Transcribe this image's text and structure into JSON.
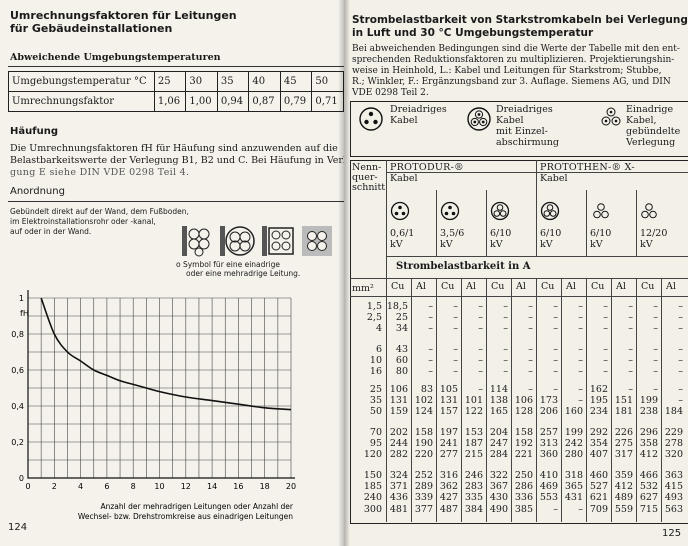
{
  "left": {
    "title_line1": "Umrechnungsfaktoren für Leitungen",
    "title_line2": "für Gebäudeinstallationen",
    "temp_section": "Abweichende Umgebungstemperaturen",
    "temp_table": {
      "row1_label": "Umgebungstemperatur °C",
      "row1_values": [
        "25",
        "30",
        "35",
        "40",
        "45",
        "50"
      ],
      "row2_label": "Umrechnungsfaktor",
      "row2_values": [
        "1,06",
        "1,00",
        "0,94",
        "0,87",
        "0,79",
        "0,71"
      ]
    },
    "haeufung_heading": "Häufung",
    "haeufung_line1": "Die Umrechnungsfaktoren fH für Häufung sind anzuwenden auf die",
    "haeufung_line2": "Belastbarkeitswerte der Verlegung B1, B2 und C. Bei Häufung in Verle-",
    "haeufung_line3": "gung E siehe DIN VDE 0298 Teil 4.",
    "anordnung_heading": "Anordnung",
    "anordnung_text1": "Gebündelt direkt auf der Wand, dem Fußboden,",
    "anordnung_text2": "im Elektroinstallationsrohr oder -kanal,",
    "anordnung_text3": "auf oder in der Wand.",
    "symbol_line1": "o  Symbol für eine einadrige",
    "symbol_line2": "oder eine mehradrige Leitung.",
    "page_number": "124"
  },
  "chart_data": {
    "type": "line",
    "title": "",
    "ylabel": "fH",
    "xlabel": "Anzahl der mehradrigen Leitungen oder Anzahl der Wechsel- bzw. Drehstromkreise aus einadrigen Leitungen",
    "xlabel_line1": "Anzahl der mehradrigen Leitungen oder Anzahl der",
    "xlabel_line2": "Wechsel- bzw. Drehstromkreise aus einadrigen Leitungen",
    "xlim": [
      0,
      20
    ],
    "ylim": [
      0,
      1
    ],
    "x_ticks": [
      "0",
      "2",
      "4",
      "6",
      "8",
      "10",
      "12",
      "14",
      "16",
      "18",
      "20"
    ],
    "y_ticks": [
      "0",
      "0,2",
      "0,4",
      "0,6",
      "0,8",
      "1"
    ],
    "grid": true,
    "series": [
      {
        "x": [
          1,
          2,
          3,
          4,
          5,
          6,
          7,
          8,
          9,
          10,
          12,
          14,
          16,
          18,
          20
        ],
        "y": [
          1.0,
          0.8,
          0.7,
          0.65,
          0.6,
          0.57,
          0.54,
          0.52,
          0.5,
          0.48,
          0.45,
          0.43,
          0.41,
          0.39,
          0.38
        ]
      }
    ]
  },
  "right": {
    "title_line1": "Strombelastbarkeit von Starkstromkabeln bei Verlegung frei",
    "title_line2": "in Luft und 30 °C Umgebungstemperatur",
    "intro_line1": "Bei abweichenden Bedingungen sind die Werte der Tabelle mit den ent-",
    "intro_line2": "sprechenden Reduktionsfaktoren zu multiplizieren. Projektierungshin-",
    "intro_line3": "weise in Heinhold, L.: Kabel und Leitungen für Starkstrom; Stubbe,",
    "intro_line4": "R.; Winkler, F.: Ergänzungsband zur 3. Auflage. Siemens AG, und DIN",
    "intro_line5": "VDE 0298 Teil 2.",
    "legend": [
      {
        "line1": "Dreiadriges",
        "line2": "Kabel",
        "line3": "",
        "line4": ""
      },
      {
        "line1": "Dreiadriges",
        "line2": "Kabel",
        "line3": "mit Einzel-",
        "line4": "abschirmung"
      },
      {
        "line1": "Einadrige",
        "line2": "Kabel,",
        "line3": "gebündelte",
        "line4": "Verlegung"
      }
    ],
    "nenn_line1": "Nenn-",
    "nenn_line2": "quer-",
    "nenn_line3": "schnitt",
    "group1": "PROTODUR-®",
    "group1_sub": "Kabel",
    "group2": "PROTOTHEN-® X-",
    "group2_sub": "Kabel",
    "voltages": [
      {
        "v": "0,6/1",
        "u": "kV"
      },
      {
        "v": "3,5/6",
        "u": "kV"
      },
      {
        "v": "6/10",
        "u": "kV"
      },
      {
        "v": "6/10",
        "u": "kV"
      },
      {
        "v": "6/10",
        "u": "kV"
      },
      {
        "v": "12/20",
        "u": "kV"
      }
    ],
    "strombelastbarkeit": "Strombelastbarkeit in A",
    "unit": "mm²",
    "material_headers": [
      "Cu",
      "Al",
      "Cu",
      "Al",
      "Cu",
      "Al",
      "Cu",
      "Al",
      "Cu",
      "Al",
      "Cu",
      "Al"
    ],
    "sections": [
      "1,5\n2,5\n4",
      "6\n10\n16",
      "25\n35\n50",
      "70\n95\n120",
      "150\n185\n240\n300"
    ],
    "columns": [
      [
        "18,5\n25\n34",
        "43\n60\n80",
        "106\n131\n159",
        "202\n244\n282",
        "324\n371\n436\n481"
      ],
      [
        "–\n–\n–",
        "–\n–\n–",
        "83\n102\n124",
        "158\n190\n220",
        "252\n289\n339\n377"
      ],
      [
        "–\n–\n–",
        "–\n–\n–",
        "105\n131\n157",
        "197\n241\n277",
        "316\n362\n427\n487"
      ],
      [
        "–\n–\n–",
        "–\n–\n–",
        "–\n101\n122",
        "153\n187\n215",
        "246\n283\n335\n384"
      ],
      [
        "–\n–\n–",
        "–\n–\n–",
        "114\n138\n165",
        "204\n247\n284",
        "322\n367\n430\n490"
      ],
      [
        "–\n–\n–",
        "–\n–\n–",
        "–\n106\n128",
        "158\n192\n221",
        "250\n286\n336\n385"
      ],
      [
        "–\n–\n–",
        "–\n–\n–",
        "–\n173\n206",
        "257\n313\n360",
        "410\n469\n553\n–"
      ],
      [
        "–\n–\n–",
        "–\n–\n–",
        "–\n–\n160",
        "199\n242\n280",
        "318\n365\n431\n–"
      ],
      [
        "–\n–\n–",
        "–\n–\n–",
        "162\n195\n234",
        "292\n354\n407",
        "460\n527\n621\n709"
      ],
      [
        "–\n–\n–",
        "–\n–\n–",
        "–\n151\n181",
        "226\n275\n317",
        "359\n412\n489\n559"
      ],
      [
        "–\n–\n–",
        "–\n–\n–",
        "–\n199\n238",
        "296\n358\n412",
        "466\n532\n627\n715"
      ],
      [
        "–\n–\n–",
        "–\n–\n–",
        "–\n–\n184",
        "229\n278\n320",
        "363\n415\n493\n563"
      ]
    ],
    "page_number": "125"
  }
}
